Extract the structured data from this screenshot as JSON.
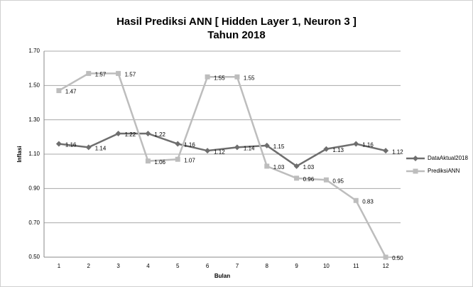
{
  "chart_data": {
    "type": "line",
    "title": "Hasil Prediksi ANN [ Hidden Layer 1, Neuron 3 ]",
    "subtitle": "Tahun 2018",
    "xlabel": "Bulan",
    "ylabel": "Inflasi",
    "categories": [
      "1",
      "2",
      "3",
      "4",
      "5",
      "6",
      "7",
      "8",
      "9",
      "10",
      "11",
      "12"
    ],
    "series": [
      {
        "name": "DataAktual2018",
        "color": "#6e6e6e",
        "marker": "diamond",
        "values": [
          1.16,
          1.14,
          1.22,
          1.22,
          1.16,
          1.12,
          1.14,
          1.15,
          1.03,
          1.13,
          1.16,
          1.12
        ]
      },
      {
        "name": "PrediksiANN",
        "color": "#bdbdbd",
        "marker": "square",
        "values": [
          1.47,
          1.57,
          1.57,
          1.06,
          1.07,
          1.55,
          1.55,
          1.03,
          0.96,
          0.95,
          0.83,
          0.5
        ],
        "value_labels": [
          "1.47",
          "1.57",
          "1.57",
          "1.06",
          "1.07",
          "1.55",
          "1.55",
          "1.03",
          "0.96",
          "0.95",
          "0.83",
          "0.50"
        ]
      }
    ],
    "ylim": [
      0.5,
      1.7
    ],
    "yticks": [
      {
        "value": 0.5,
        "label": "0.50"
      },
      {
        "value": 0.7,
        "label": "0.70"
      },
      {
        "value": 0.9,
        "label": "0.90"
      },
      {
        "value": 1.1,
        "label": "1.10"
      },
      {
        "value": 1.3,
        "label": "1.30"
      },
      {
        "value": 1.5,
        "label": "1.50"
      },
      {
        "value": 1.7,
        "label": "1.70"
      }
    ],
    "grid": true,
    "legend": "right"
  }
}
